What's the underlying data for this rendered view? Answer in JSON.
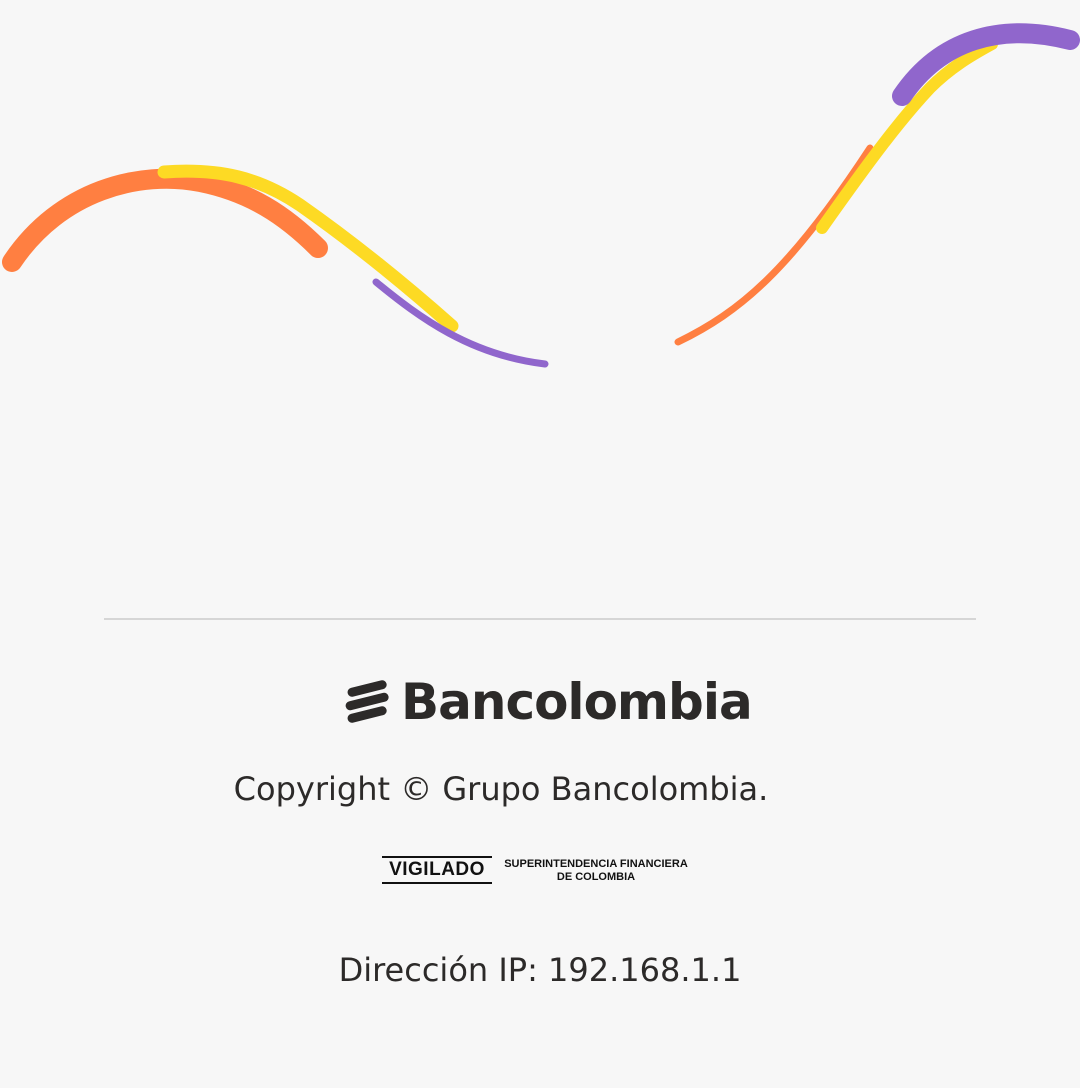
{
  "footer": {
    "brand_name": "Bancolombia",
    "copyright": "Copyright © Grupo Bancolombia.",
    "vigilado": {
      "label": "VIGILADO",
      "line1": "SUPERINTENDENCIA FINANCIERA",
      "line2": "DE COLOMBIA"
    },
    "ip_text": "Dirección IP: 192.168.1.1"
  },
  "icons": {
    "brand_logo": "bancolombia-logo-icon",
    "decoration": "wavy-lines-decoration"
  },
  "colors": {
    "background": "#f7f7f7",
    "text": "#2c2a29",
    "accent_orange": "#ff7f41",
    "accent_yellow": "#fdda24",
    "accent_purple": "#9066cc",
    "divider": "#d6d6d6"
  }
}
